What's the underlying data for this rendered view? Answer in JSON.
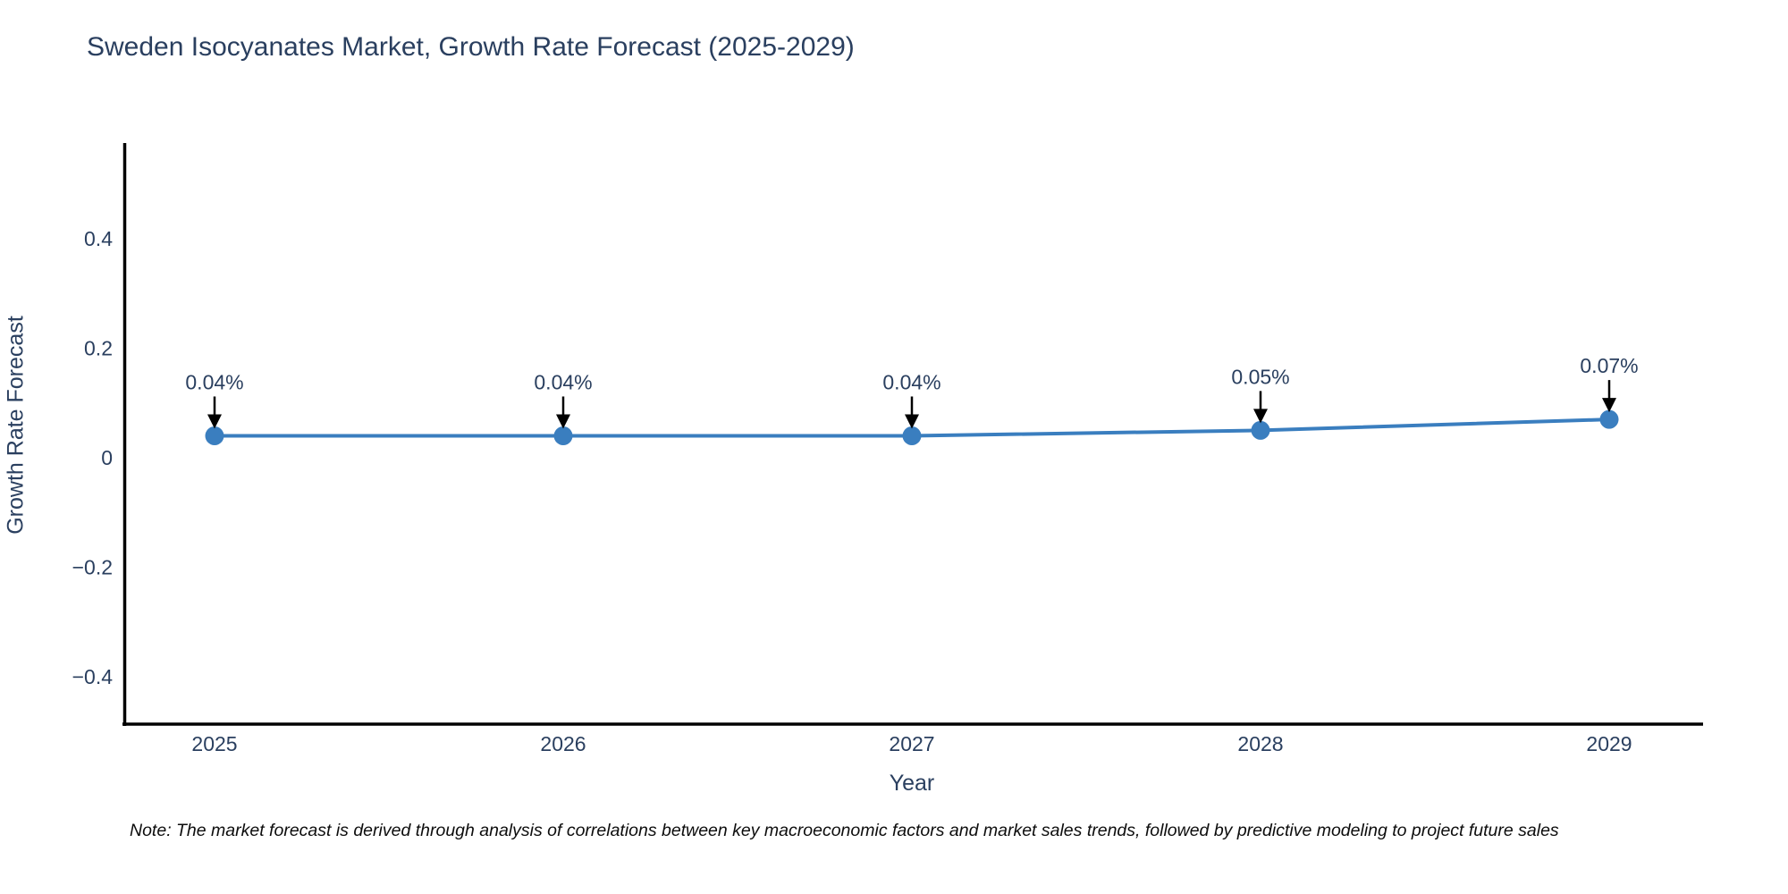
{
  "title": "Sweden Isocyanates Market, Growth Rate Forecast (2025-2029)",
  "note": "Note: The market forecast is derived through analysis of correlations between key macroeconomic factors and market sales trends, followed by predictive modeling to project future sales",
  "chart_data": {
    "type": "line",
    "x": [
      2025,
      2026,
      2027,
      2028,
      2029
    ],
    "categories": [
      "2025",
      "2026",
      "2027",
      "2028",
      "2029"
    ],
    "values": [
      0.04,
      0.04,
      0.04,
      0.05,
      0.07
    ],
    "point_labels": [
      "0.04%",
      "0.04%",
      "0.04%",
      "0.05%",
      "0.07%"
    ],
    "title": "Sweden Isocyanates Market, Growth Rate Forecast (2025-2029)",
    "xlabel": "Year",
    "ylabel": "Growth Rate Forecast",
    "yticks": [
      0.4,
      0.2,
      0,
      -0.2,
      -0.4
    ],
    "ytick_labels": [
      "0.4",
      "0.2",
      "0",
      "−0.2",
      "−0.4"
    ],
    "ylim": [
      -0.48,
      0.575
    ],
    "grid": false,
    "legend": false,
    "colors": {
      "line": "#3a7ebf",
      "marker": "#3a7ebf",
      "axis": "#000000",
      "text": "#2a3f5f",
      "annotation_arrow": "#000000",
      "note_text": "#0d0d0d",
      "background": "#ffffff"
    }
  }
}
